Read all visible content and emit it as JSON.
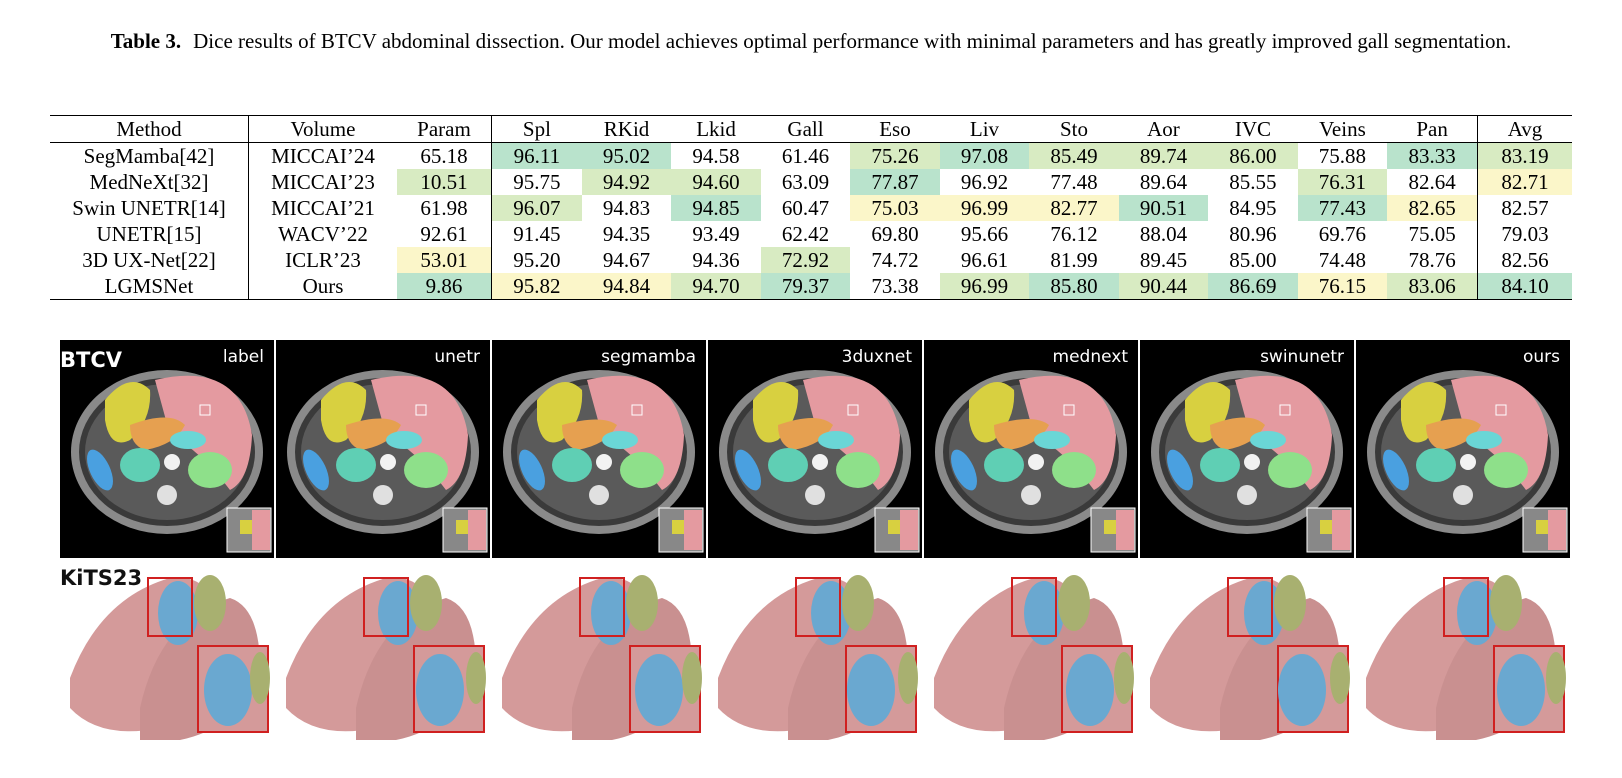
{
  "caption": {
    "label": "Table 3.",
    "text": "Dice results of BTCV abdominal dissection. Our model achieves optimal performance with minimal parameters and has greatly improved gall segmentation."
  },
  "table": {
    "headers": [
      "Method",
      "Volume",
      "Param",
      "Spl",
      "RKid",
      "Lkid",
      "Gall",
      "Eso",
      "Liv",
      "Sto",
      "Aor",
      "IVC",
      "Veins",
      "Pan",
      "Avg"
    ],
    "rows": [
      {
        "cells": [
          "SegMamba[42]",
          "MICCAI’24",
          "65.18",
          "96.11",
          "95.02",
          "94.58",
          "61.46",
          "75.26",
          "97.08",
          "85.49",
          "89.74",
          "86.00",
          "75.88",
          "83.33",
          "83.19"
        ]
      },
      {
        "cells": [
          "MedNeXt[32]",
          "MICCAI’23",
          "10.51",
          "95.75",
          "94.92",
          "94.60",
          "63.09",
          "77.87",
          "96.92",
          "77.48",
          "89.64",
          "85.55",
          "76.31",
          "82.64",
          "82.71"
        ]
      },
      {
        "cells": [
          "Swin UNETR[14]",
          "MICCAI’21",
          "61.98",
          "96.07",
          "94.83",
          "94.85",
          "60.47",
          "75.03",
          "96.99",
          "82.77",
          "90.51",
          "84.95",
          "77.43",
          "82.65",
          "82.57"
        ]
      },
      {
        "cells": [
          "UNETR[15]",
          "WACV’22",
          "92.61",
          "91.45",
          "94.35",
          "93.49",
          "62.42",
          "69.80",
          "95.66",
          "76.12",
          "88.04",
          "80.96",
          "69.76",
          "75.05",
          "79.03"
        ]
      },
      {
        "cells": [
          "3D UX-Net[22]",
          "ICLR’23",
          "53.01",
          "95.20",
          "94.67",
          "94.36",
          "72.92",
          "74.72",
          "96.61",
          "81.99",
          "89.45",
          "85.00",
          "74.48",
          "78.76",
          "82.56"
        ]
      },
      {
        "cells": [
          "LGMSNet",
          "Ours",
          "9.86",
          "95.82",
          "94.84",
          "94.70",
          "79.37",
          "73.38",
          "96.99",
          "85.80",
          "90.44",
          "86.69",
          "76.15",
          "83.06",
          "84.10"
        ]
      }
    ],
    "highlight_colors": {
      "best": "#b9e3cc",
      "second": "#d8ebc2",
      "third": "#fbf6c9"
    }
  },
  "figure": {
    "ct_dataset": "BTCV",
    "kidney_dataset": "KiTS23",
    "panels": [
      "label",
      "unetr",
      "segmamba",
      "3duxnet",
      "mednext",
      "swinunetr",
      "ours"
    ],
    "colors": {
      "liver": "#e49aa0",
      "spleen_gall": "#d8d040",
      "stomach": "#e6a050",
      "kidney_left": "#5fcfb4",
      "kidney_right": "#8ee08a",
      "aorta": "#6ad6d6",
      "ivc": "#4aa0e0",
      "kidney_3d": "#d49a9a",
      "tumor_3d": "#6aa8d0",
      "cyst_3d": "#a8b070",
      "zoom_box": "#d02020"
    }
  }
}
